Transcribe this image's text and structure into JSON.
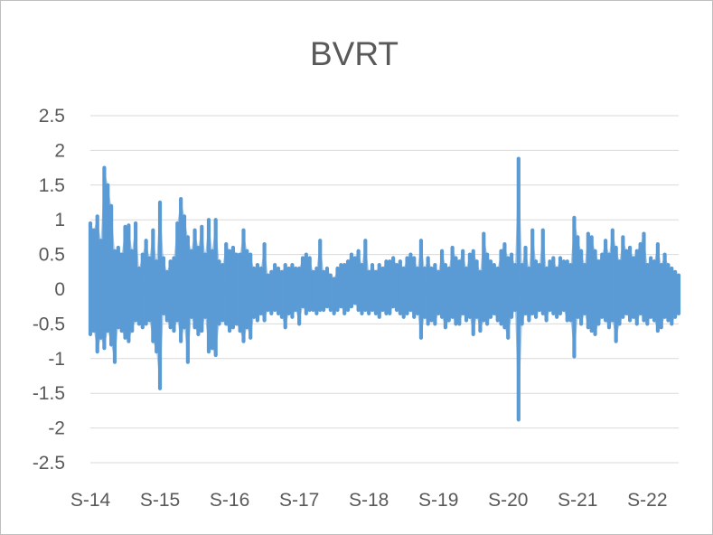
{
  "chart_data": {
    "type": "line",
    "title": "BVRT",
    "xlabel": "",
    "ylabel": "",
    "ylim": [
      -2.5,
      2.5
    ],
    "y_ticks": [
      "2.5",
      "2",
      "1.5",
      "1",
      "0.5",
      "0",
      "-0.5",
      "-1",
      "-1.5",
      "-2",
      "-2.5"
    ],
    "x_ticks": [
      "S-14",
      "S-15",
      "S-16",
      "S-17",
      "S-18",
      "S-19",
      "S-20",
      "S-21",
      "S-22"
    ],
    "grid": true,
    "legend": "none",
    "series": [
      {
        "color": "#5b9bd5",
        "x": [
          0.0,
          0.05,
          0.1,
          0.15,
          0.2,
          0.25,
          0.3,
          0.35,
          0.4,
          0.45,
          0.5,
          0.55,
          0.6,
          0.65,
          0.7,
          0.75,
          0.8,
          0.85,
          0.9,
          0.95,
          1.0,
          1.05,
          1.1,
          1.15,
          1.2,
          1.25,
          1.3,
          1.35,
          1.4,
          1.45,
          1.5,
          1.55,
          1.6,
          1.65,
          1.7,
          1.75,
          1.8,
          1.85,
          1.9,
          1.95,
          2.0,
          2.05,
          2.1,
          2.15,
          2.2,
          2.25,
          2.3,
          2.35,
          2.4,
          2.45,
          2.5,
          2.55,
          2.6,
          2.65,
          2.7,
          2.75,
          2.8,
          2.85,
          2.9,
          2.95,
          3.0,
          3.05,
          3.1,
          3.15,
          3.2,
          3.25,
          3.3,
          3.35,
          3.4,
          3.45,
          3.5,
          3.55,
          3.6,
          3.65,
          3.7,
          3.75,
          3.8,
          3.85,
          3.9,
          3.95,
          4.0,
          4.05,
          4.1,
          4.15,
          4.2,
          4.25,
          4.3,
          4.35,
          4.4,
          4.45,
          4.5,
          4.55,
          4.6,
          4.65,
          4.7,
          4.75,
          4.8,
          4.85,
          4.9,
          4.95,
          5.0,
          5.05,
          5.1,
          5.15,
          5.2,
          5.25,
          5.3,
          5.35,
          5.4,
          5.45,
          5.5,
          5.55,
          5.6,
          5.65,
          5.7,
          5.75,
          5.8,
          5.85,
          5.9,
          5.95,
          6.0,
          6.05,
          6.1,
          6.15,
          6.2,
          6.25,
          6.3,
          6.35,
          6.4,
          6.45,
          6.5,
          6.55,
          6.6,
          6.65,
          6.7,
          6.75,
          6.8,
          6.85,
          6.9,
          6.95,
          7.0,
          7.05,
          7.1,
          7.15,
          7.2,
          7.25,
          7.3,
          7.35,
          7.4,
          7.45,
          7.5,
          7.55,
          7.6,
          7.65,
          7.7,
          7.75,
          7.8,
          7.85,
          7.9,
          7.95,
          8.0,
          8.05,
          8.1,
          8.15,
          8.2,
          8.25,
          8.3,
          8.35,
          8.4,
          8.45
        ],
        "hi": [
          0.95,
          0.85,
          1.05,
          0.7,
          1.75,
          1.5,
          1.2,
          0.55,
          0.6,
          0.5,
          0.9,
          0.92,
          0.55,
          0.95,
          0.3,
          0.5,
          0.7,
          0.45,
          0.85,
          0.4,
          1.25,
          0.45,
          0.25,
          0.4,
          0.45,
          0.95,
          1.3,
          1.05,
          0.75,
          0.55,
          0.85,
          0.6,
          0.9,
          0.5,
          1.0,
          0.55,
          1.0,
          0.4,
          0.35,
          0.65,
          0.55,
          0.6,
          0.5,
          0.5,
          0.85,
          0.55,
          0.5,
          0.3,
          0.35,
          0.3,
          0.65,
          0.2,
          0.25,
          0.35,
          0.3,
          0.25,
          0.35,
          0.3,
          0.35,
          0.3,
          0.3,
          0.45,
          0.5,
          0.45,
          0.25,
          0.3,
          0.7,
          0.25,
          0.3,
          0.2,
          0.15,
          0.3,
          0.35,
          0.35,
          0.4,
          0.5,
          0.45,
          0.55,
          0.35,
          0.7,
          0.25,
          0.35,
          0.25,
          0.35,
          0.3,
          0.4,
          0.4,
          0.45,
          0.35,
          0.4,
          0.3,
          0.45,
          0.5,
          0.45,
          0.3,
          0.7,
          0.3,
          0.45,
          0.3,
          0.35,
          0.25,
          0.55,
          0.35,
          0.3,
          0.6,
          0.45,
          0.4,
          0.55,
          0.3,
          0.5,
          0.55,
          0.4,
          0.25,
          0.8,
          0.5,
          0.4,
          0.35,
          0.3,
          0.55,
          0.65,
          0.45,
          0.5,
          0.35,
          1.88,
          0.35,
          0.6,
          0.3,
          0.85,
          0.4,
          0.35,
          0.85,
          0.3,
          0.4,
          0.45,
          0.3,
          0.45,
          0.4,
          0.4,
          0.35,
          1.03,
          0.75,
          0.55,
          0.35,
          0.8,
          0.75,
          0.55,
          0.4,
          0.5,
          0.7,
          0.5,
          0.85,
          0.6,
          0.4,
          0.75,
          0.55,
          0.6,
          0.45,
          0.55,
          0.65,
          0.8,
          0.35,
          0.45,
          0.4,
          0.65,
          0.35,
          0.5,
          0.35,
          0.3,
          0.25,
          0.2
        ],
        "lo": [
          -0.65,
          -0.6,
          -0.9,
          -0.7,
          -0.85,
          -0.6,
          -0.8,
          -1.05,
          -0.55,
          -0.6,
          -0.7,
          -0.75,
          -0.6,
          -0.45,
          -0.5,
          -0.55,
          -0.5,
          -0.45,
          -0.75,
          -0.9,
          -1.43,
          -0.35,
          -0.45,
          -0.55,
          -0.6,
          -0.45,
          -0.75,
          -0.55,
          -1.05,
          -0.4,
          -0.55,
          -0.65,
          -0.6,
          -0.4,
          -0.9,
          -0.85,
          -0.95,
          -0.5,
          -0.45,
          -0.5,
          -0.6,
          -0.55,
          -0.5,
          -0.6,
          -0.75,
          -0.55,
          -0.7,
          -0.4,
          -0.45,
          -0.35,
          -0.45,
          -0.3,
          -0.35,
          -0.3,
          -0.35,
          -0.4,
          -0.55,
          -0.35,
          -0.4,
          -0.3,
          -0.5,
          -0.25,
          -0.35,
          -0.3,
          -0.3,
          -0.35,
          -0.3,
          -0.3,
          -0.25,
          -0.3,
          -0.35,
          -0.3,
          -0.25,
          -0.35,
          -0.3,
          -0.25,
          -0.2,
          -0.3,
          -0.35,
          -0.3,
          -0.35,
          -0.3,
          -0.35,
          -0.4,
          -0.3,
          -0.35,
          -0.35,
          -0.25,
          -0.3,
          -0.35,
          -0.4,
          -0.35,
          -0.3,
          -0.4,
          -0.35,
          -0.7,
          -0.4,
          -0.5,
          -0.45,
          -0.5,
          -0.35,
          -0.4,
          -0.55,
          -0.45,
          -0.4,
          -0.5,
          -0.5,
          -0.35,
          -0.45,
          -0.4,
          -0.65,
          -0.4,
          -0.6,
          -0.45,
          -0.5,
          -0.4,
          -0.35,
          -0.45,
          -0.5,
          -0.55,
          -0.7,
          -0.4,
          -0.3,
          -1.88,
          -0.5,
          -0.35,
          -0.45,
          -0.35,
          -0.4,
          -0.3,
          -0.35,
          -0.45,
          -0.3,
          -0.35,
          -0.4,
          -0.35,
          -0.3,
          -0.45,
          -0.45,
          -0.97,
          -0.4,
          -0.5,
          -0.35,
          -0.55,
          -0.6,
          -0.65,
          -0.5,
          -0.4,
          -0.45,
          -0.55,
          -0.45,
          -0.75,
          -0.5,
          -0.4,
          -0.35,
          -0.45,
          -0.4,
          -0.5,
          -0.35,
          -0.45,
          -0.5,
          -0.4,
          -0.45,
          -0.6,
          -0.55,
          -0.4,
          -0.45,
          -0.5,
          -0.4,
          -0.35
        ]
      }
    ]
  }
}
